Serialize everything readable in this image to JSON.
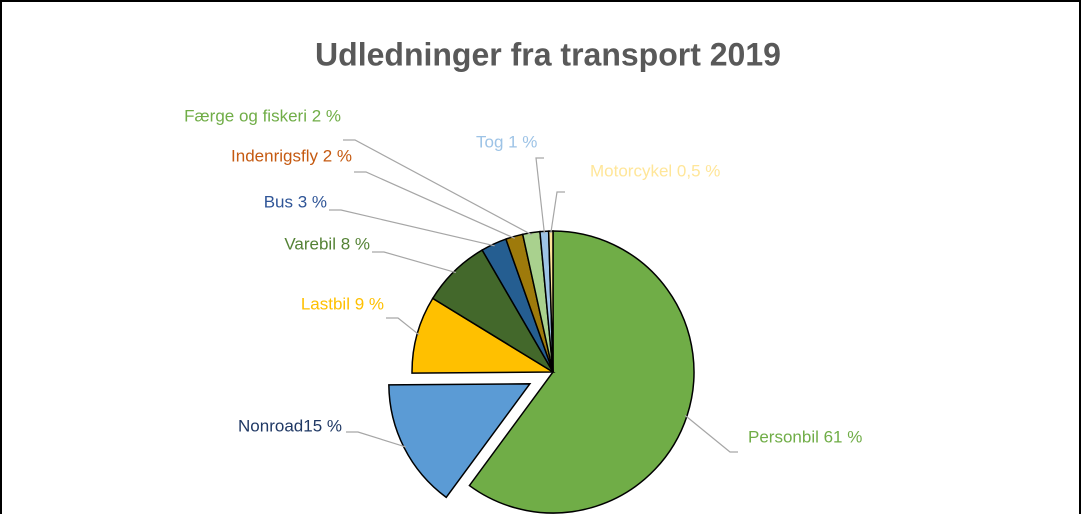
{
  "chart_data": {
    "type": "pie",
    "title": "Udledninger fra transport 2019",
    "values": [
      61,
      15,
      9,
      8,
      3,
      2,
      2,
      1,
      0.5
    ],
    "value_labels": [
      "Personbil 61 %",
      "Nonroad15 %",
      "Lastbil 9 %",
      "Varebil 8 %",
      "Bus 3 %",
      "Indenrigsfly 2 %",
      "Færge og fiskeri 2 %",
      "Tog 1 %",
      "Motorcykel 0,5 %"
    ],
    "colors": [
      "#70ad47",
      "#5b9bd5",
      "#ffc000",
      "#43682b",
      "#255e91",
      "#9e7a0b",
      "#a9d18e",
      "#9dc3e6",
      "#ffe699"
    ],
    "label_colors": [
      "#70ad47",
      "#1f3864",
      "#ffc000",
      "#548235",
      "#2f5597",
      "#c55a11",
      "#70ad47",
      "#9dc3e6",
      "#ffe699"
    ],
    "exploded": [
      1
    ]
  }
}
